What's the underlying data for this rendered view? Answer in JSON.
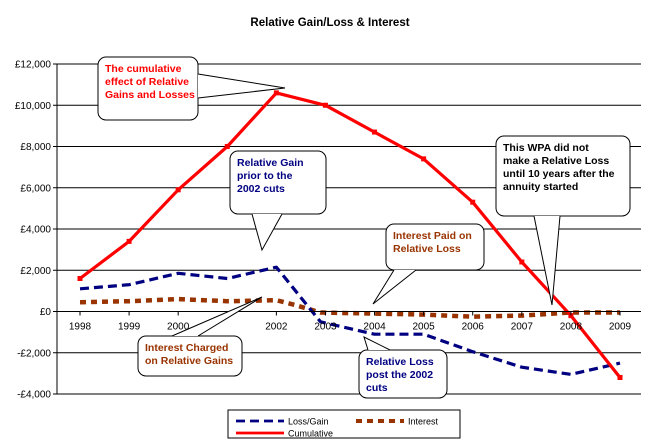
{
  "chart_data": {
    "type": "line",
    "title": "Relative Gain/Loss & Interest",
    "x": [
      "1998",
      "1999",
      "2000",
      "2001",
      "2002",
      "2003",
      "2004",
      "2005",
      "2006",
      "2007",
      "2008",
      "2009"
    ],
    "x_tick_labels": [
      "1998",
      "1999",
      "2000",
      "",
      "2002",
      "2003",
      "2004",
      "2005",
      "2006",
      "2007",
      "2008",
      "2009"
    ],
    "ylim": [
      -4000,
      12000
    ],
    "y_ticks": [
      -4000,
      -2000,
      0,
      2000,
      4000,
      6000,
      8000,
      10000,
      12000
    ],
    "y_tick_labels": [
      "-£4,000",
      "-£2,000",
      "£0",
      "£2,000",
      "£4,000",
      "£6,000",
      "£8,000",
      "£10,000",
      "£12,000"
    ],
    "grid": true,
    "legend_position": "bottom",
    "series": [
      {
        "name": "Loss/Gain",
        "color": "#000080",
        "style": "dashed",
        "points": [
          [
            1998.0,
            1100
          ],
          [
            1999.0,
            1300
          ],
          [
            2000.0,
            1850
          ],
          [
            2001.0,
            1600
          ],
          [
            2002.0,
            2150
          ],
          [
            2002.9,
            -500
          ],
          [
            2004.0,
            -1100
          ],
          [
            2005.0,
            -1100
          ],
          [
            2006.0,
            -1950
          ],
          [
            2007.0,
            -2700
          ],
          [
            2008.0,
            -3050
          ],
          [
            2009.0,
            -2500
          ]
        ]
      },
      {
        "name": "Interest",
        "color": "#993300",
        "style": "dotted",
        "points": [
          [
            1998.0,
            450
          ],
          [
            1999.0,
            500
          ],
          [
            2000.0,
            600
          ],
          [
            2001.0,
            500
          ],
          [
            2002.0,
            550
          ],
          [
            2002.4,
            300
          ],
          [
            2002.9,
            -50
          ],
          [
            2004.0,
            -100
          ],
          [
            2005.0,
            -150
          ],
          [
            2006.0,
            -250
          ],
          [
            2007.0,
            -200
          ],
          [
            2008.0,
            -50
          ],
          [
            2009.0,
            -50
          ]
        ]
      },
      {
        "name": "Cumulative",
        "color": "#ff0000",
        "style": "solid",
        "points": [
          [
            1998.0,
            1600
          ],
          [
            1999.0,
            3400
          ],
          [
            2000.0,
            5900
          ],
          [
            2001.0,
            8000
          ],
          [
            2002.0,
            10600
          ],
          [
            2003.0,
            10000
          ],
          [
            2004.0,
            8700
          ],
          [
            2005.0,
            7400
          ],
          [
            2006.0,
            5300
          ],
          [
            2007.0,
            2400
          ],
          [
            2008.0,
            -200
          ],
          [
            2009.0,
            -3200
          ]
        ]
      }
    ],
    "annotations": [
      {
        "id": "cumulative",
        "lines": [
          "The cumulative",
          "effect of Relative",
          "Gains and Losses"
        ],
        "color": "#ff0000"
      },
      {
        "id": "gain-prior",
        "lines": [
          "Relative Gain",
          "prior to the",
          "2002 cuts"
        ],
        "color": "#000080"
      },
      {
        "id": "interest-paid",
        "lines": [
          "Interest Paid on",
          "Relative Loss"
        ],
        "color": "#993300"
      },
      {
        "id": "wpa",
        "lines": [
          "This WPA did not",
          "make a Relative Loss",
          "until 10 years after the",
          "annuity started"
        ],
        "color": "#000000"
      },
      {
        "id": "interest-charged",
        "lines": [
          "Interest Charged",
          "on Relative Gains"
        ],
        "color": "#993300"
      },
      {
        "id": "loss-post",
        "lines": [
          "Relative Loss",
          "post the 2002",
          "cuts"
        ],
        "color": "#000080"
      }
    ]
  }
}
